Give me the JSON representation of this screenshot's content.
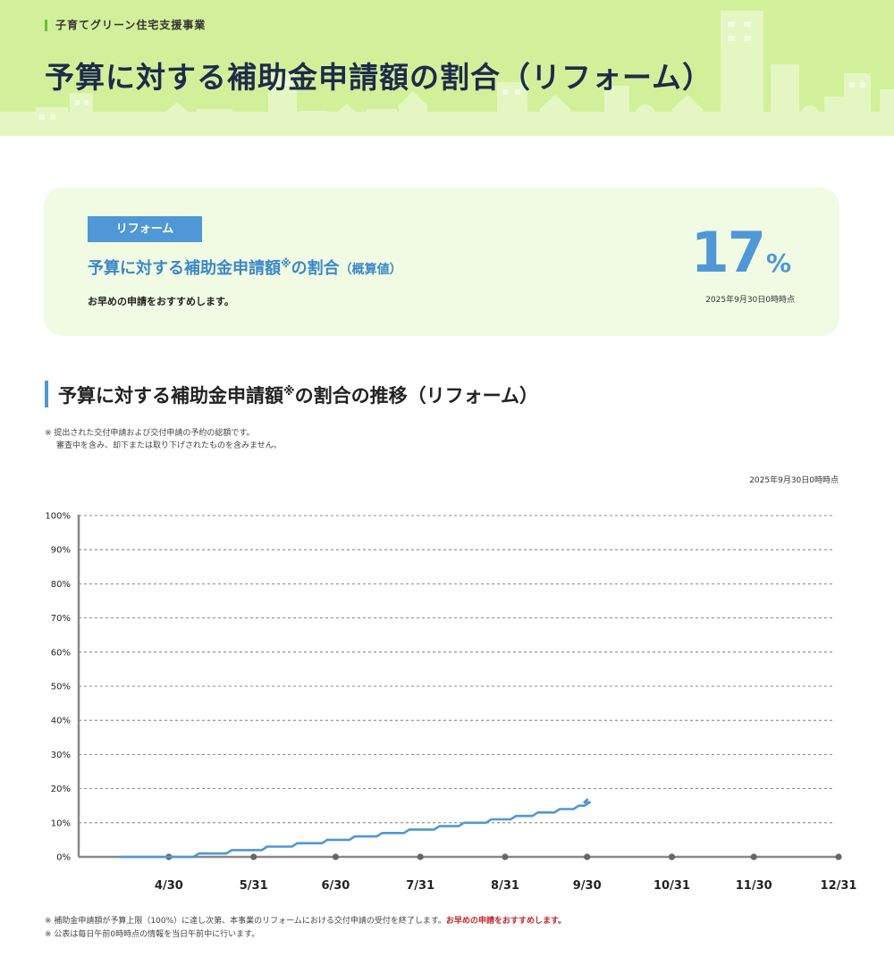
{
  "header": {
    "program": "子育てグリーン住宅支援事業",
    "title": "予算に対する補助金申請額の割合（リフォーム）"
  },
  "summary": {
    "tag": "リフォーム",
    "heading_main": "予算に対する補助金申請額",
    "heading_mark": "※",
    "heading_tail": "の割合",
    "heading_paren": "（概算値）",
    "note": "お早めの申請をおすすめします。",
    "value": "17",
    "unit": "%",
    "as_of": "2025年9月30日0時時点"
  },
  "section": {
    "title_main": "予算に対する補助金申請額",
    "title_mark": "※",
    "title_tail": "の割合の推移（リフォーム）",
    "note_line1": "※ 提出された交付申請および交付申請の予約の総額です。",
    "note_line2": "審査中を含み、却下または取り下げされたものを含みません。",
    "as_of": "2025年9月30日0時時点"
  },
  "chart_data": {
    "type": "line",
    "title": "",
    "xlabel": "",
    "ylabel": "",
    "x_ticks": [
      "4/30",
      "5/31",
      "6/30",
      "7/31",
      "8/31",
      "9/30",
      "10/31",
      "11/30",
      "12/31"
    ],
    "xlim": [
      "2025-03-28",
      "2025-12-31"
    ],
    "ylim": [
      0,
      100
    ],
    "y_ticks": [
      "0%",
      "10%",
      "20%",
      "30%",
      "40%",
      "50%",
      "60%",
      "70%",
      "80%",
      "90%",
      "100%"
    ],
    "grid": true,
    "legend": "none",
    "series": [
      {
        "color": "#4f97d6",
        "step": true,
        "points": [
          [
            "2025-04-12",
            0
          ],
          [
            "2025-05-10",
            1
          ],
          [
            "2025-05-22",
            2
          ],
          [
            "2025-06-04",
            3
          ],
          [
            "2025-06-15",
            4
          ],
          [
            "2025-06-26",
            5
          ],
          [
            "2025-07-06",
            6
          ],
          [
            "2025-07-16",
            7
          ],
          [
            "2025-07-26",
            8
          ],
          [
            "2025-08-06",
            9
          ],
          [
            "2025-08-15",
            10
          ],
          [
            "2025-08-25",
            11
          ],
          [
            "2025-09-03",
            12
          ],
          [
            "2025-09-11",
            13
          ],
          [
            "2025-09-19",
            14
          ],
          [
            "2025-09-26",
            15
          ],
          [
            "2025-09-30",
            16
          ],
          [
            "2025-09-30",
            17
          ]
        ]
      }
    ]
  },
  "footer": {
    "note1_prefix": "※ 補助金申請額が予算上限（100%）に達し次第、本事業のリフォームにおける交付申請の受付を終了します。",
    "note1_warn": "お早めの申請をおすすめします。",
    "note2": "※ 公表は毎日午前0時時点の情報を当日午前中に行います。"
  },
  "colors": {
    "header_bg": "#d2f09a",
    "card_bg": "#f1fbe4",
    "accent_blue": "#4f97d6",
    "accent_green": "#6cbf32",
    "title_navy": "#1f2b4a",
    "warn_red": "#c3272b"
  }
}
